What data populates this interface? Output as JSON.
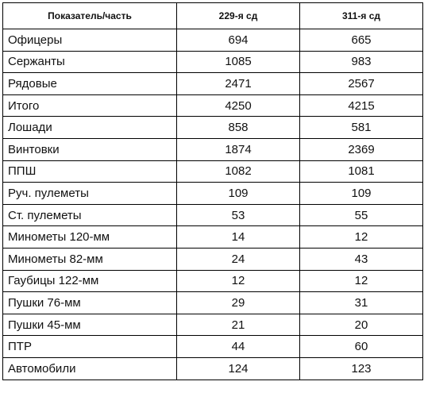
{
  "table": {
    "headers": [
      "Показатель/часть",
      "229-я сд",
      "311-я сд"
    ],
    "rows": [
      [
        "Офицеры",
        "694",
        "665"
      ],
      [
        "Сержанты",
        "1085",
        "983"
      ],
      [
        "Рядовые",
        "2471",
        "2567"
      ],
      [
        "Итого",
        "4250",
        "4215"
      ],
      [
        "Лошади",
        "858",
        "581"
      ],
      [
        "Винтовки",
        "1874",
        "2369"
      ],
      [
        "ППШ",
        "1082",
        "1081"
      ],
      [
        "Руч. пулеметы",
        "109",
        "109"
      ],
      [
        "Ст. пулеметы",
        "53",
        "55"
      ],
      [
        "Минометы 120-мм",
        "14",
        "12"
      ],
      [
        "Минометы 82-мм",
        "24",
        "43"
      ],
      [
        "Гаубицы 122-мм",
        "12",
        "12"
      ],
      [
        "Пушки 76-мм",
        "29",
        "31"
      ],
      [
        "Пушки 45-мм",
        "21",
        "20"
      ],
      [
        "ПТР",
        "44",
        "60"
      ],
      [
        "Автомобили",
        "124",
        "123"
      ]
    ]
  }
}
